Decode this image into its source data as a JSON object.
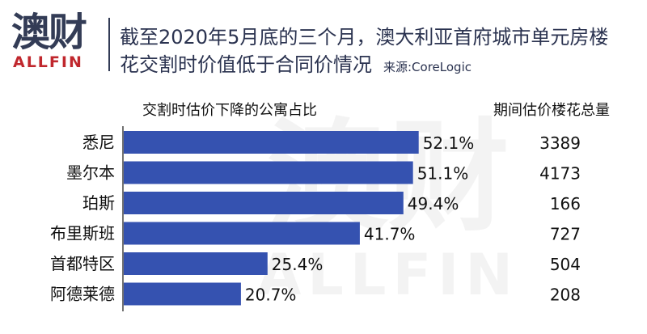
{
  "logo": {
    "cn": "澳财",
    "en": "ALLFIN"
  },
  "title": {
    "line1": "截至2020年5月底的三个月，澳大利亚首府城市单元房楼",
    "line2": "花交割时价值低于合同价情况",
    "source": "来源:CoreLogic"
  },
  "watermark": {
    "cn": "澳财",
    "en": "ALLFIN"
  },
  "colors": {
    "bar": "#3552b0",
    "brand_dark": "#333c56",
    "brand_red": "#c0272d"
  },
  "chart_data": {
    "type": "bar",
    "orientation": "horizontal",
    "column_headers": {
      "bars": "交割时估价下降的公寓占比",
      "totals": "期间估价楼花总量"
    },
    "categories": [
      "悉尼",
      "墨尔本",
      "珀斯",
      "布里斯班",
      "首都特区",
      "阿德莱德"
    ],
    "values": [
      52.1,
      51.1,
      49.4,
      41.7,
      25.4,
      20.7
    ],
    "value_labels": [
      "52.1%",
      "51.1%",
      "49.4%",
      "41.7%",
      "25.4%",
      "20.7%"
    ],
    "totals": [
      3389,
      4173,
      166,
      727,
      504,
      208
    ],
    "xlim": [
      0,
      100
    ],
    "grid": false,
    "legend": "none"
  }
}
